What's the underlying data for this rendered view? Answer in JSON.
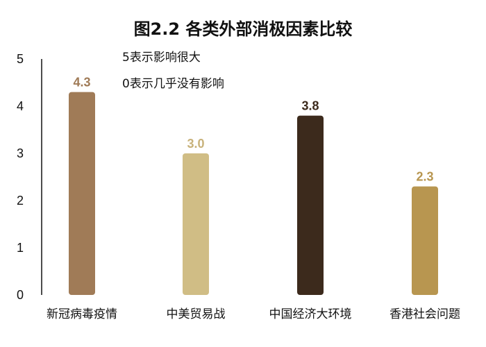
{
  "chart_data": {
    "type": "bar",
    "title": "图2.2  各类外部消极因素比较",
    "xlabel": "",
    "ylabel": "",
    "ylim": [
      0,
      5
    ],
    "yticks": [
      "0",
      "1",
      "2",
      "3",
      "4",
      "5"
    ],
    "grid": false,
    "categories": [
      "新冠病毒疫情",
      "中美贸易战",
      "中国经济大环境",
      "香港社会问题"
    ],
    "values": [
      4.3,
      3.0,
      3.8,
      2.3
    ],
    "value_labels": [
      "4.3",
      "3.0",
      "3.8",
      "2.3"
    ],
    "bar_colors": [
      "#A07B57",
      "#D0BD85",
      "#3C2A1C",
      "#B89650"
    ],
    "label_colors": [
      "#A07B57",
      "#C8B27A",
      "#3C2A1C",
      "#B89650"
    ],
    "annotations": [
      "5表示影响很大",
      "0表示几乎没有影响"
    ]
  }
}
